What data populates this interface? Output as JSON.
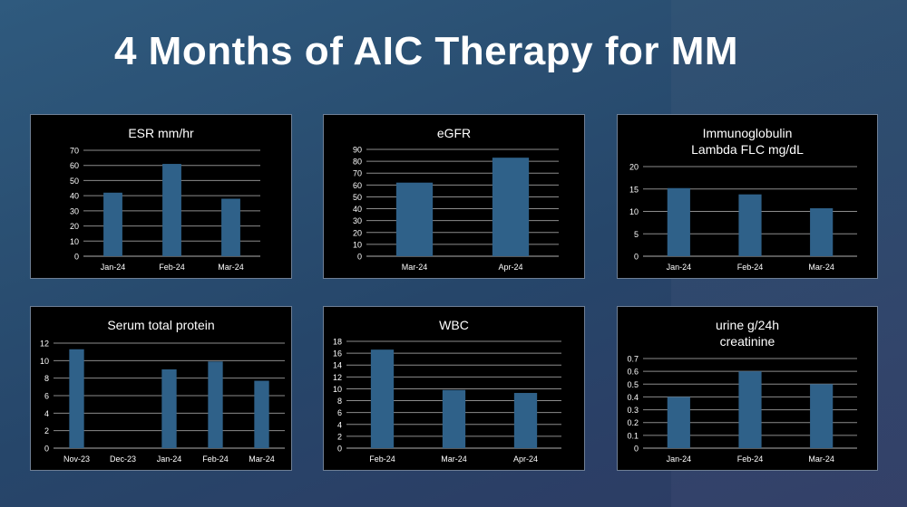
{
  "page": {
    "title": "4 Months of AIC Therapy for MM"
  },
  "colors": {
    "bar": "#2f6189",
    "grid": "#8c8c8c",
    "text": "#ffffff",
    "chart_bg": "#000000"
  },
  "chart_data": [
    {
      "type": "bar",
      "title": "ESR mm/hr",
      "categories": [
        "Jan-24",
        "Feb-24",
        "Mar-24"
      ],
      "values": [
        42,
        61,
        38
      ],
      "ylim": [
        0,
        70
      ],
      "yticks": [
        0,
        10,
        20,
        30,
        40,
        50,
        60,
        70
      ],
      "grid": true
    },
    {
      "type": "bar",
      "title": "eGFR",
      "categories": [
        "Mar-24",
        "Apr-24"
      ],
      "values": [
        62,
        83
      ],
      "ylim": [
        0,
        90
      ],
      "yticks": [
        0,
        10,
        20,
        30,
        40,
        50,
        60,
        70,
        80,
        90
      ],
      "grid": true
    },
    {
      "type": "bar",
      "title": "Immunoglobulin",
      "subtitle": "Lambda FLC mg/dL",
      "categories": [
        "Jan-24",
        "Feb-24",
        "Mar-24"
      ],
      "values": [
        15.2,
        13.8,
        10.7
      ],
      "ylim": [
        0,
        20
      ],
      "yticks": [
        0,
        5,
        10,
        15,
        20
      ],
      "grid": true
    },
    {
      "type": "bar",
      "title": "Serum total protein",
      "categories": [
        "Nov-23",
        "Dec-23",
        "Jan-24",
        "Feb-24",
        "Mar-24"
      ],
      "values": [
        11.3,
        null,
        9.0,
        9.9,
        7.7
      ],
      "ylim": [
        0,
        12
      ],
      "yticks": [
        0,
        2,
        4,
        6,
        8,
        10,
        12
      ],
      "grid": true
    },
    {
      "type": "bar",
      "title": "WBC",
      "categories": [
        "Feb-24",
        "Mar-24",
        "Apr-24"
      ],
      "values": [
        16.6,
        9.8,
        9.3
      ],
      "ylim": [
        0,
        18
      ],
      "yticks": [
        0,
        2,
        4,
        6,
        8,
        10,
        12,
        14,
        16,
        18
      ],
      "grid": true
    },
    {
      "type": "bar",
      "title": "urine g/24h",
      "subtitle": "creatinine",
      "categories": [
        "Jan-24",
        "Feb-24",
        "Mar-24"
      ],
      "values": [
        0.4,
        0.6,
        0.5
      ],
      "ylim": [
        0,
        0.7
      ],
      "yticks": [
        0,
        0.1,
        0.2,
        0.3,
        0.4,
        0.5,
        0.6,
        0.7
      ],
      "grid": true
    }
  ]
}
